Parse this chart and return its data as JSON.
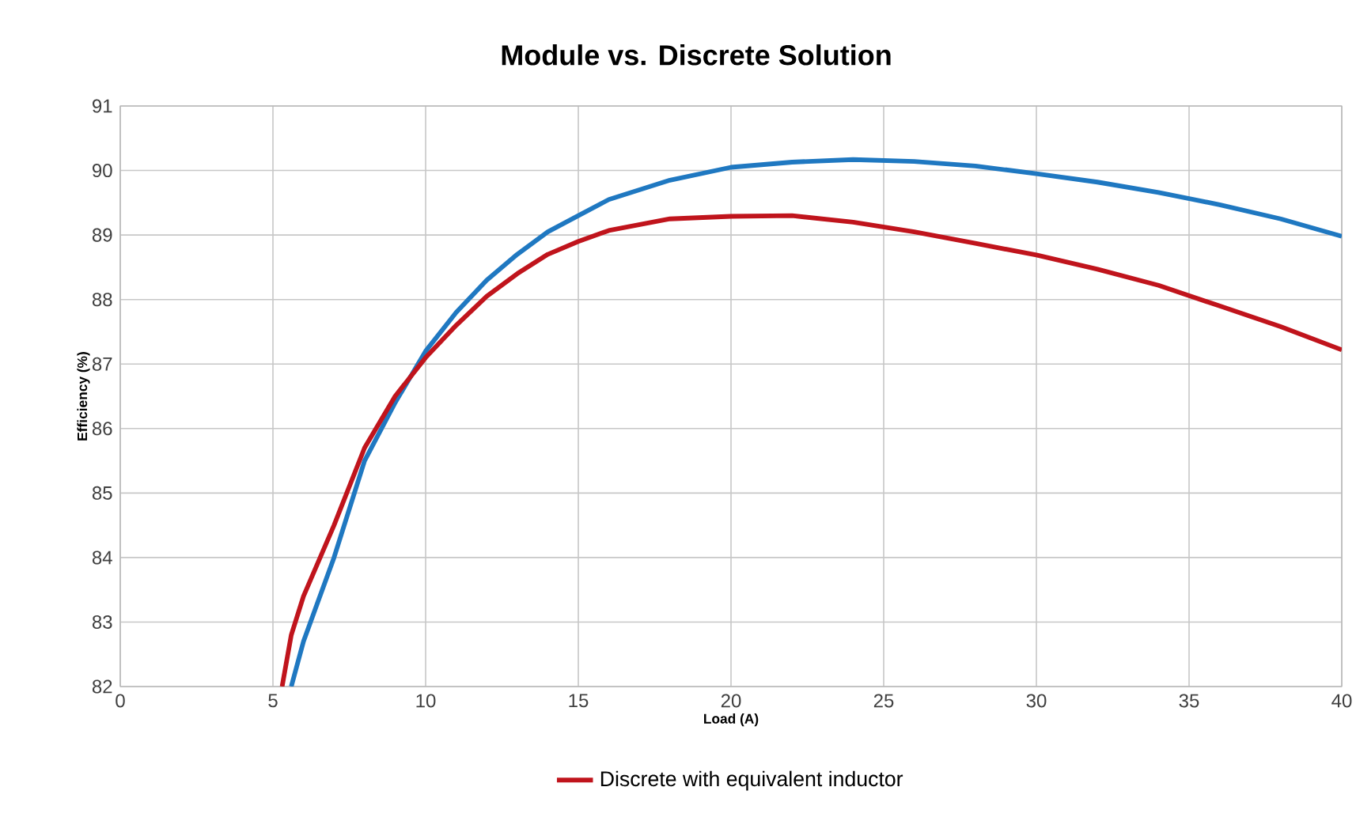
{
  "chart_data": {
    "type": "line",
    "title": "Module vs. Discrete Solution",
    "xlabel": "Load (A)",
    "ylabel": "Efficiency (%)",
    "xlim": [
      0,
      40
    ],
    "ylim": [
      82,
      91
    ],
    "xticks": [
      0,
      5,
      10,
      15,
      20,
      25,
      30,
      35,
      40
    ],
    "yticks": [
      82,
      83,
      84,
      85,
      86,
      87,
      88,
      89,
      90,
      91
    ],
    "grid": true,
    "legend": "bottom",
    "marker": "none",
    "line_style": "solid",
    "series": [
      {
        "color": "#1f78c1",
        "x": [
          5.6,
          6,
          7,
          8,
          9,
          10,
          11,
          12,
          13,
          14,
          15,
          16,
          17,
          18,
          20,
          22,
          24,
          26,
          28,
          30,
          32,
          34,
          36,
          38,
          40
        ],
        "values": [
          82,
          82.7,
          84,
          85.5,
          86.4,
          87.2,
          87.8,
          88.3,
          88.7,
          89.05,
          89.3,
          89.55,
          89.7,
          89.85,
          90.05,
          90.13,
          90.17,
          90.14,
          90.07,
          89.95,
          89.82,
          89.66,
          89.47,
          89.25,
          88.98
        ]
      },
      {
        "name": "Discrete with equivalent inductor",
        "color": "#c0141c",
        "x": [
          5.3,
          5.6,
          6,
          7,
          8,
          9,
          10,
          11,
          12,
          13,
          14,
          15,
          16,
          18,
          20,
          22,
          24,
          26,
          28,
          30,
          32,
          34,
          36,
          38,
          40
        ],
        "values": [
          82,
          82.8,
          83.4,
          84.5,
          85.7,
          86.5,
          87.1,
          87.6,
          88.05,
          88.4,
          88.7,
          88.9,
          89.07,
          89.25,
          89.29,
          89.3,
          89.2,
          89.05,
          88.87,
          88.69,
          88.47,
          88.22,
          87.9,
          87.58,
          87.22
        ]
      }
    ]
  }
}
